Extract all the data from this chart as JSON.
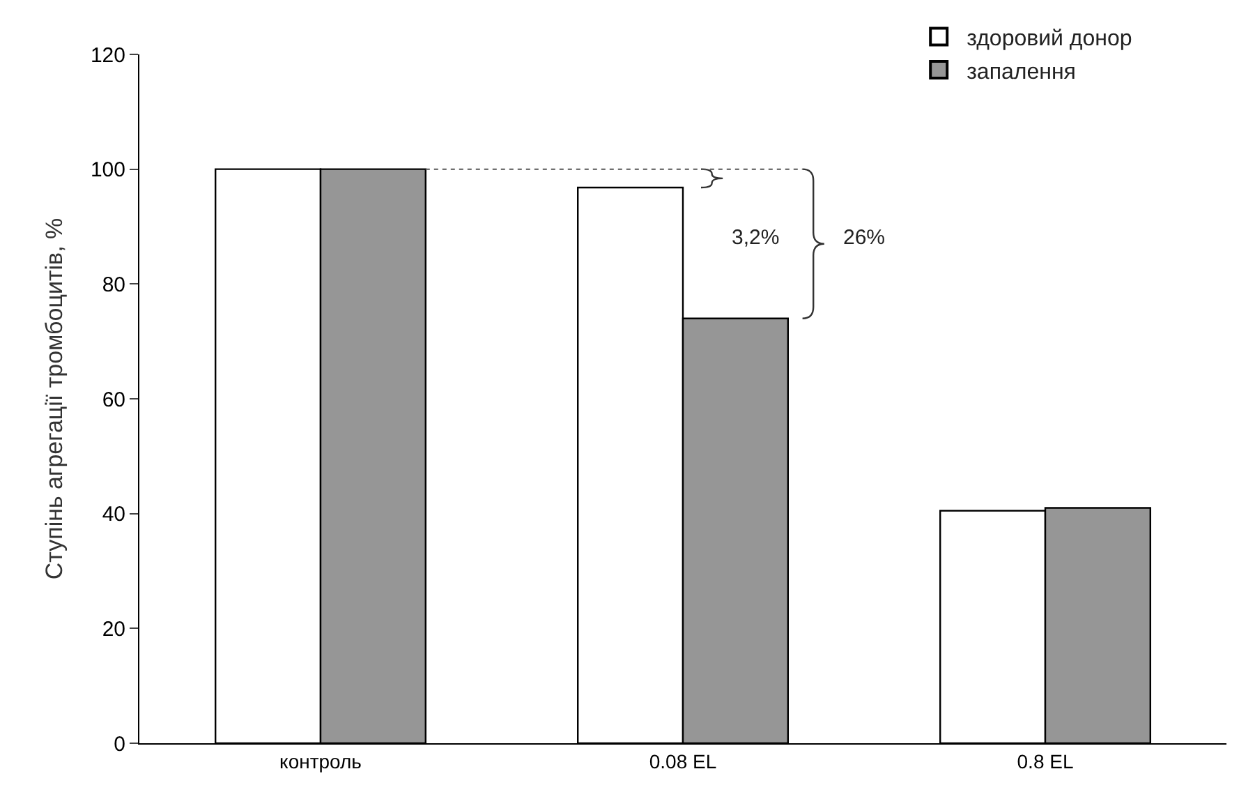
{
  "chart_data": {
    "type": "bar",
    "categories": [
      "контроль",
      "0.08 EL",
      "0.8 EL"
    ],
    "ylabel": "Ступінь агрегації тромбоцитів, %",
    "ylim": [
      0,
      120
    ],
    "yticks": [
      0,
      20,
      40,
      60,
      80,
      100,
      120
    ],
    "series": [
      {
        "name": "здоровий донор",
        "color": "#ffffff",
        "values": [
          100,
          96.8,
          40.5
        ]
      },
      {
        "name": "запалення",
        "color": "#969696",
        "values": [
          100,
          74,
          41
        ]
      }
    ],
    "annotations": [
      "3,2%",
      "26%"
    ],
    "ref_lines": [
      {
        "axis": "y",
        "value": 100,
        "line_style": "dotted",
        "color": "#555555"
      }
    ],
    "legend": "top right"
  }
}
